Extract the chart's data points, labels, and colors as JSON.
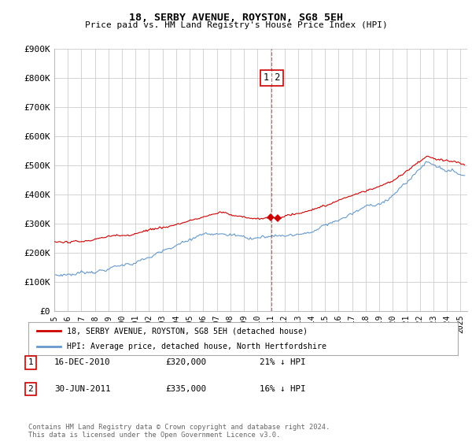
{
  "title": "18, SERBY AVENUE, ROYSTON, SG8 5EH",
  "subtitle": "Price paid vs. HM Land Registry's House Price Index (HPI)",
  "ylabel_ticks": [
    "£0",
    "£100K",
    "£200K",
    "£300K",
    "£400K",
    "£500K",
    "£600K",
    "£700K",
    "£800K",
    "£900K"
  ],
  "ylim": [
    0,
    900000
  ],
  "xlim_start": 1995.0,
  "xlim_end": 2025.5,
  "transaction1_date": 2010.96,
  "transaction2_date": 2011.5,
  "transaction1_price": 320000,
  "transaction2_price": 335000,
  "red_color": "#cc0000",
  "blue_color": "#6699cc",
  "legend_label_red": "18, SERBY AVENUE, ROYSTON, SG8 5EH (detached house)",
  "legend_label_blue": "HPI: Average price, detached house, North Hertfordshire",
  "footer": "Contains HM Land Registry data © Crown copyright and database right 2024.\nThis data is licensed under the Open Government Licence v3.0.",
  "bg_color": "#ffffff",
  "grid_color": "#cccccc"
}
